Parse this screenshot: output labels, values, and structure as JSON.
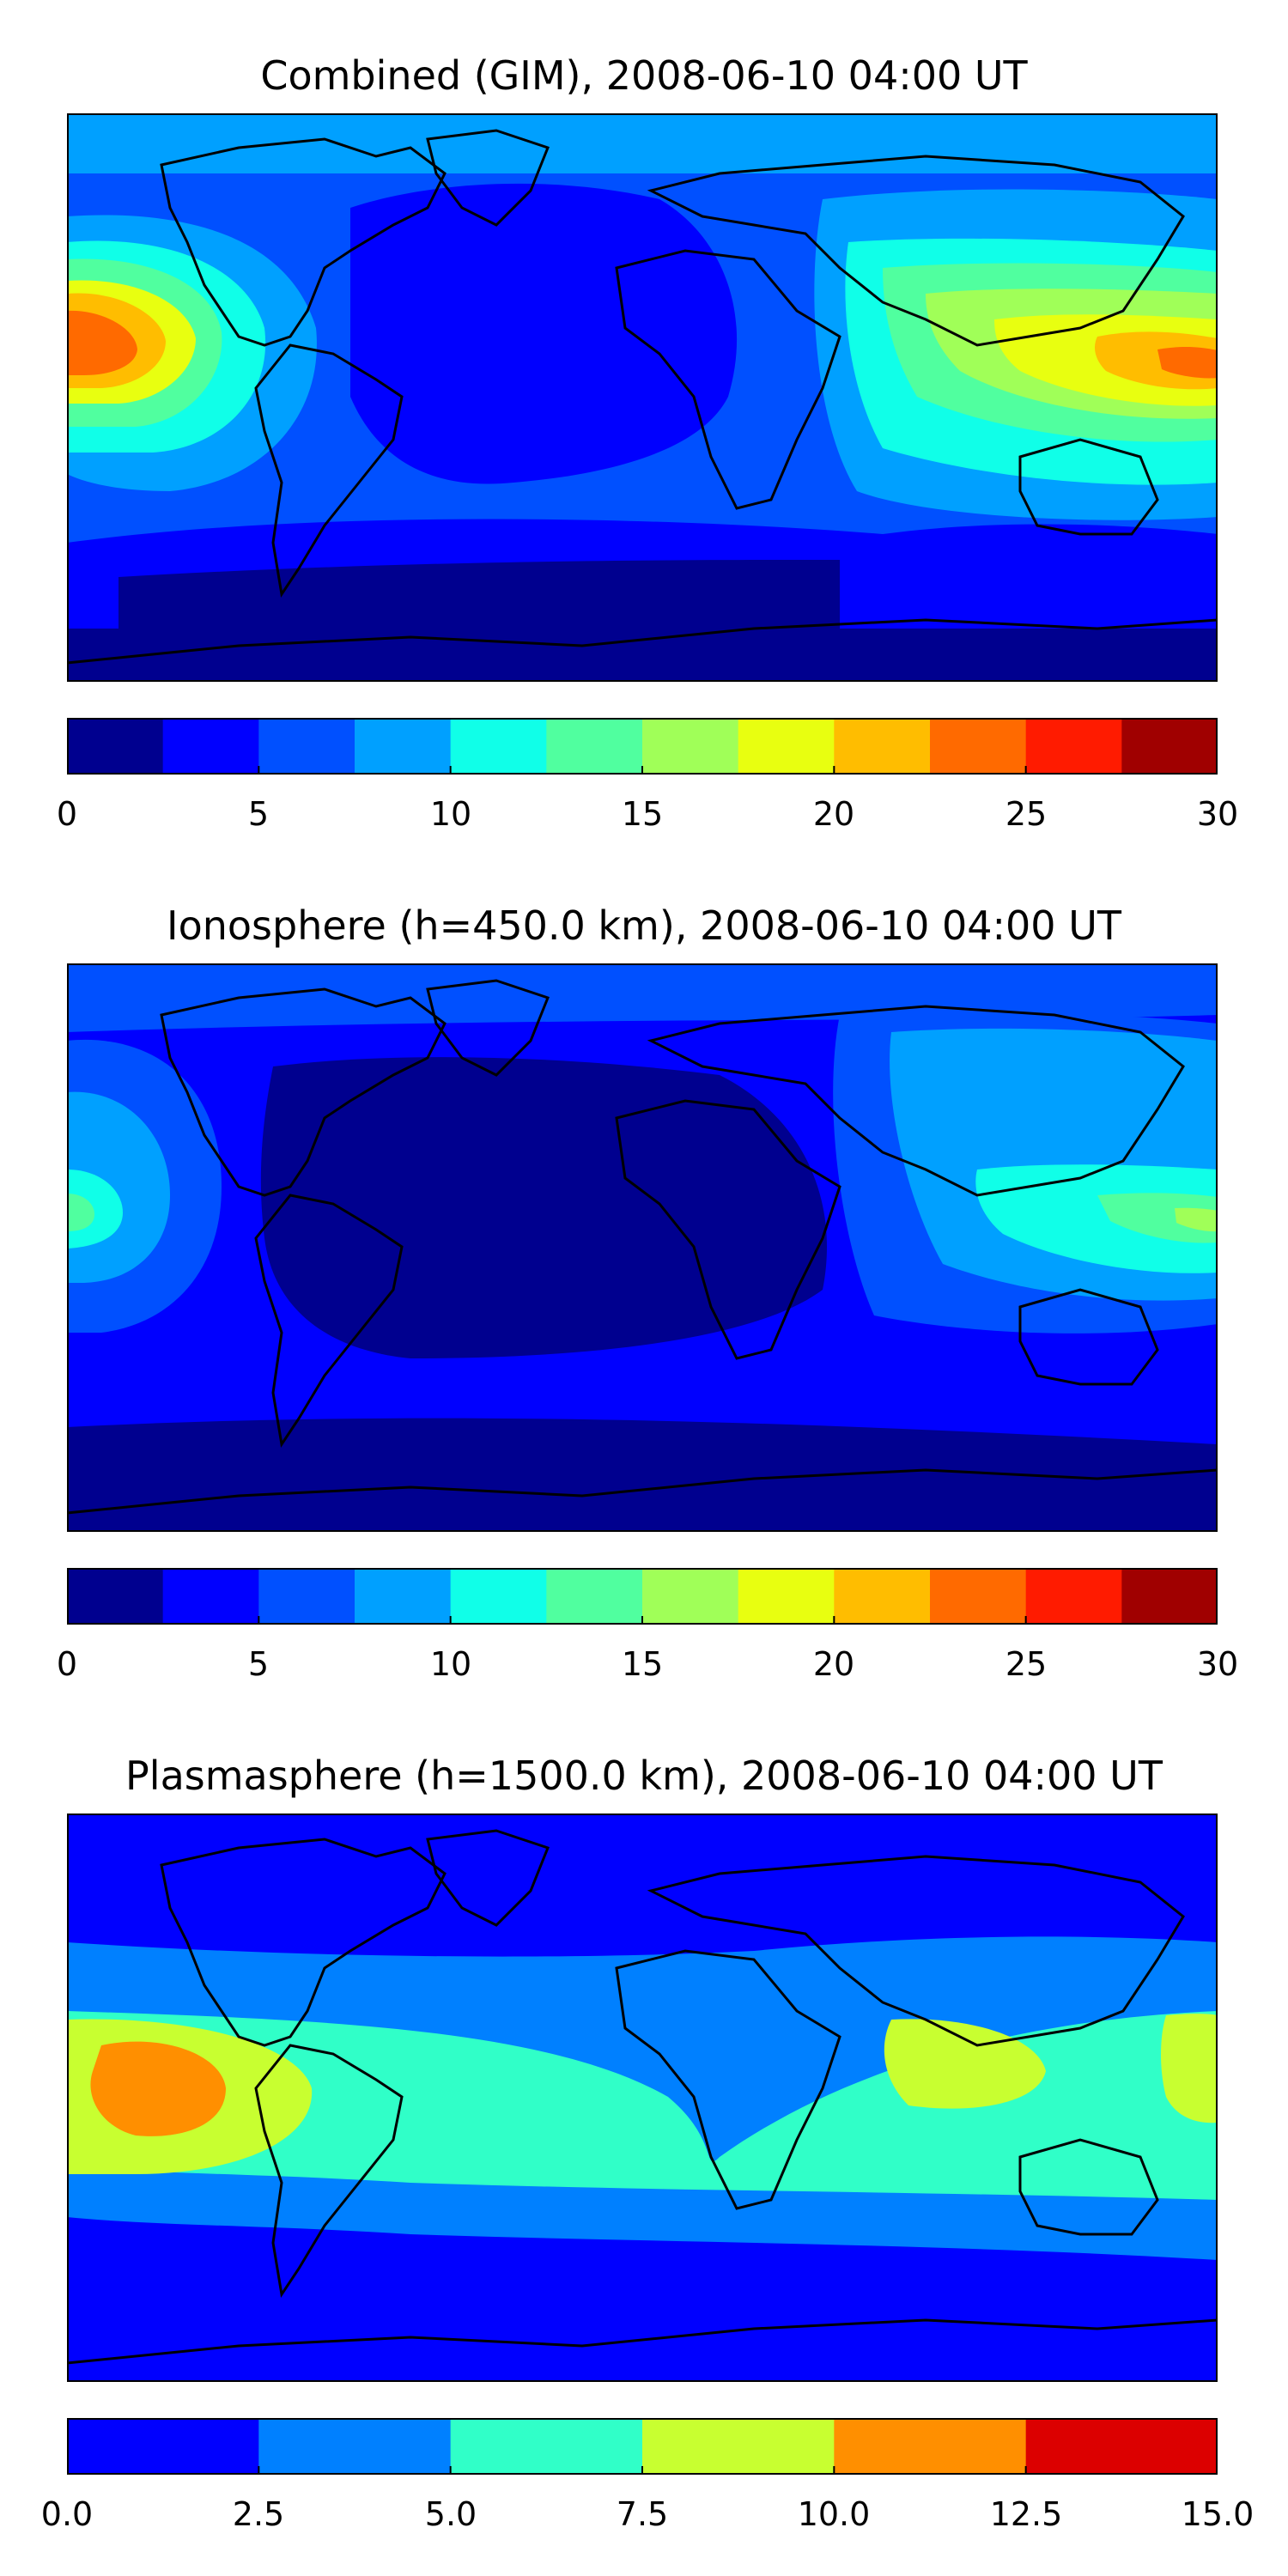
{
  "panels": [
    {
      "title": "Combined (GIM), 2008-06-10 04:00 UT",
      "colorbar_ticks": [
        "0",
        "5",
        "10",
        "15",
        "20",
        "25",
        "30"
      ],
      "colorbar_colors": [
        "#00008f",
        "#0000ff",
        "#0050ff",
        "#00a0ff",
        "#10ffe8",
        "#50ff9f",
        "#a0ff58",
        "#e8ff10",
        "#ffbd00",
        "#ff6a00",
        "#ff1b00",
        "#a00000"
      ]
    },
    {
      "title": "Ionosphere  (h=450.0 km), 2008-06-10 04:00 UT",
      "colorbar_ticks": [
        "0",
        "5",
        "10",
        "15",
        "20",
        "25",
        "30"
      ],
      "colorbar_colors": [
        "#00008f",
        "#0000ff",
        "#0050ff",
        "#00a0ff",
        "#10ffe8",
        "#50ff9f",
        "#a0ff58",
        "#e8ff10",
        "#ffbd00",
        "#ff6a00",
        "#ff1b00",
        "#a00000"
      ]
    },
    {
      "title": "Plasmasphere (h=1500.0 km), 2008-06-10 04:00 UT",
      "colorbar_ticks": [
        "0.0",
        "2.5",
        "5.0",
        "7.5",
        "10.0",
        "12.5",
        "15.0"
      ],
      "colorbar_colors": [
        "#0000ff",
        "#0080ff",
        "#30ffc8",
        "#c8ff30",
        "#ff8f00",
        "#dc0000"
      ]
    }
  ]
}
